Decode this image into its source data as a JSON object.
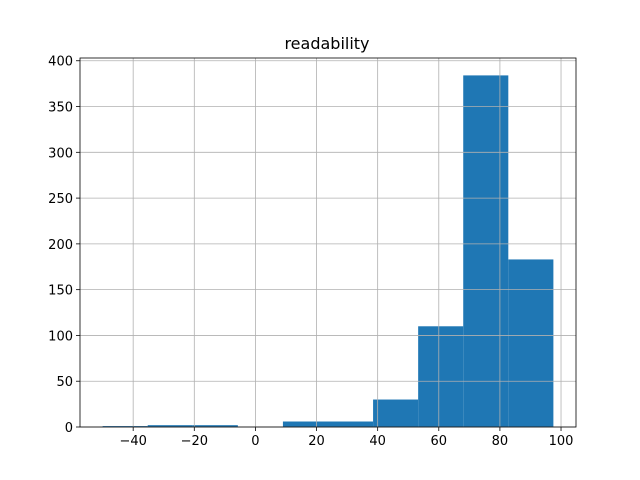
{
  "chart_data": {
    "type": "histogram",
    "title": "readability",
    "bins": [
      -50,
      -35.25,
      -20.5,
      -5.75,
      9,
      23.75,
      38.5,
      53.25,
      68,
      82.75,
      97.5
    ],
    "values": [
      1,
      2,
      2,
      0,
      6,
      6,
      30,
      110,
      384,
      183
    ],
    "color": "#1f77b4",
    "xlim": [
      -57.4,
      104.9
    ],
    "xticks": [
      {
        "value": -40,
        "label": "−40"
      },
      {
        "value": -20,
        "label": "−20"
      },
      0,
      20,
      40,
      60,
      80,
      100
    ],
    "ylim": [
      0,
      403
    ],
    "yticks": [
      0,
      50,
      100,
      150,
      200,
      250,
      300,
      350,
      400
    ],
    "grid": true
  }
}
